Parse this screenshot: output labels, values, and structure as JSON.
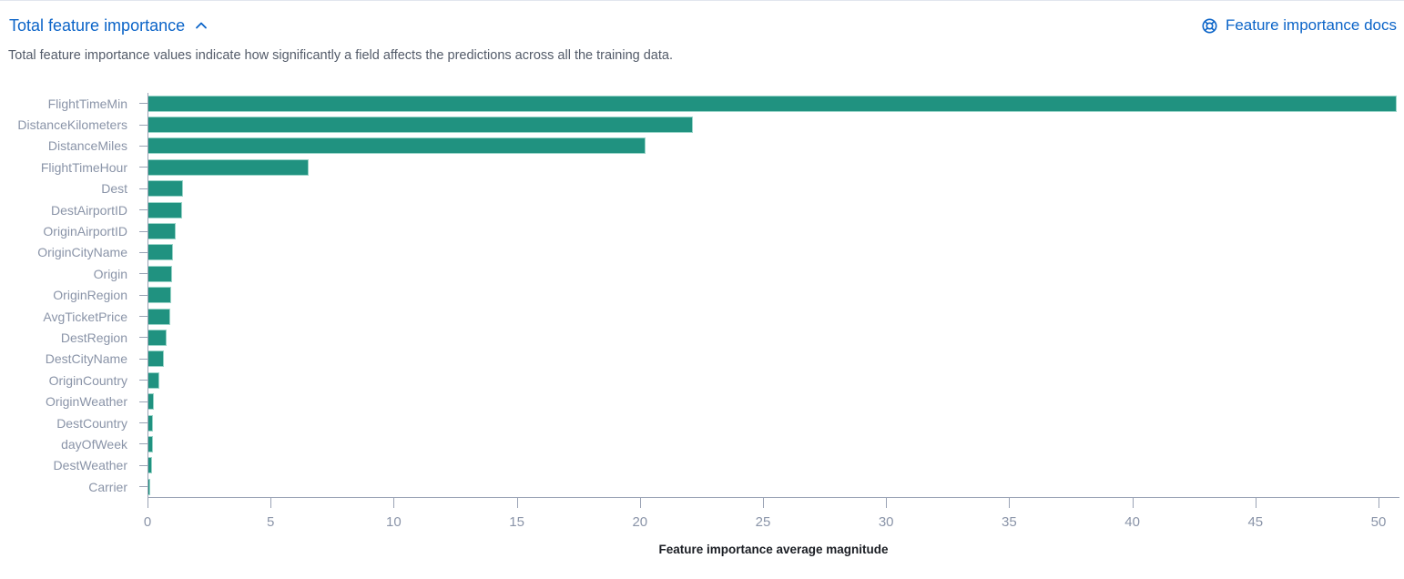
{
  "header": {
    "title": "Total feature importance",
    "docs_link_label": "Feature importance docs",
    "description": "Total feature importance values indicate how significantly a field affects the predictions across all the training data."
  },
  "colors": {
    "link_blue": "#0b64c8",
    "bar_teal": "#209280",
    "axis_label_gray": "#8a94a8",
    "axis_line_gray": "#9aa3b5"
  },
  "icons": {
    "collapse": "chevron-up-icon",
    "docs": "life-ring-documentation-icon"
  },
  "chart_data": {
    "type": "bar",
    "orientation": "horizontal",
    "xlabel": "Feature importance average magnitude",
    "ylabel": "",
    "xlim": [
      0,
      51
    ],
    "xticks": [
      0,
      5,
      10,
      15,
      20,
      25,
      30,
      35,
      40,
      45,
      50
    ],
    "grid": false,
    "legend": "none",
    "bar_color": "#209280",
    "categories": [
      "FlightTimeMin",
      "DistanceKilometers",
      "DistanceMiles",
      "FlightTimeHour",
      "Dest",
      "DestAirportID",
      "OriginAirportID",
      "OriginCityName",
      "Origin",
      "OriginRegion",
      "AvgTicketPrice",
      "DestRegion",
      "DestCityName",
      "OriginCountry",
      "OriginWeather",
      "DestCountry",
      "dayOfWeek",
      "DestWeather",
      "Carrier"
    ],
    "values": [
      50.7,
      22.1,
      20.2,
      6.5,
      1.4,
      1.35,
      1.12,
      1.0,
      0.97,
      0.93,
      0.87,
      0.74,
      0.62,
      0.44,
      0.23,
      0.2,
      0.2,
      0.15,
      0.07
    ]
  }
}
